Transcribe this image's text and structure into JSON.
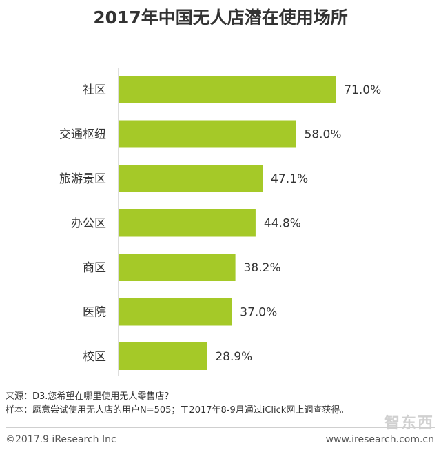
{
  "chart_data": {
    "type": "bar",
    "orientation": "horizontal",
    "title": "2017年中国无人店潜在使用场所",
    "categories": [
      "社区",
      "交通枢纽",
      "旅游景区",
      "办公区",
      "商区",
      "医院",
      "校区"
    ],
    "values": [
      71.0,
      58.0,
      47.1,
      44.8,
      38.2,
      37.0,
      28.9
    ],
    "value_labels": [
      "71.0%",
      "58.0%",
      "47.1%",
      "44.8%",
      "38.2%",
      "37.0%",
      "28.9%"
    ],
    "xlim": [
      0,
      100
    ],
    "bar_color": "#a5c928",
    "grid": false
  },
  "notes": {
    "source": "来源：D3.您希望在哪里使用无人零售店？",
    "sample": "样本：愿意尝试使用无人店的用户N=505；于2017年8-9月通过iClick网上调查获得。"
  },
  "footer": {
    "copyright": "©2017.9 iResearch Inc",
    "website": "www.iresearch.com.cn"
  },
  "watermark": "智东西"
}
